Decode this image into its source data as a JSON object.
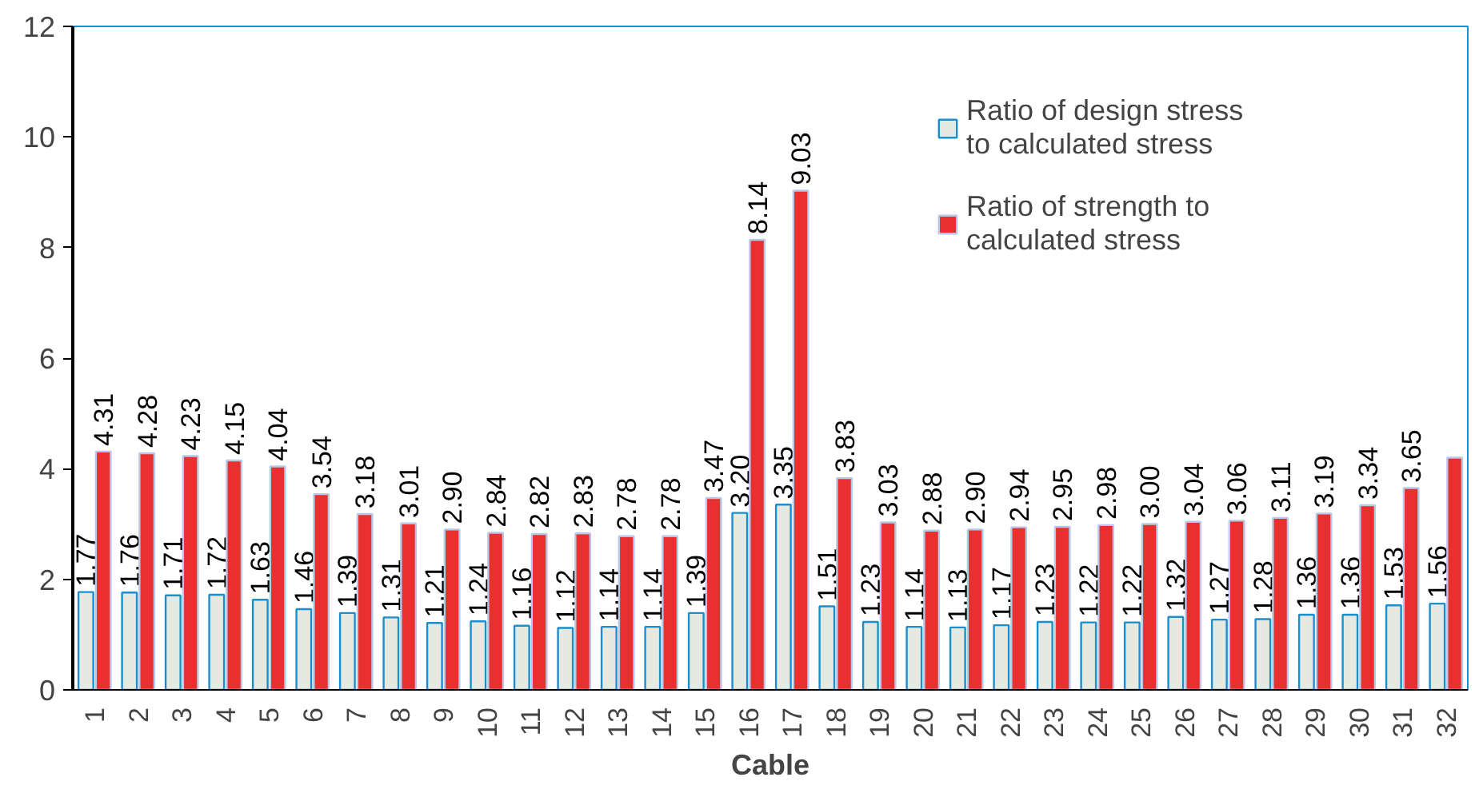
{
  "chart_data": {
    "type": "bar",
    "xlabel": "Cable",
    "categories": [
      "1",
      "2",
      "3",
      "4",
      "5",
      "6",
      "7",
      "8",
      "9",
      "10",
      "11",
      "12",
      "13",
      "14",
      "15",
      "16",
      "17",
      "18",
      "19",
      "20",
      "21",
      "22",
      "23",
      "24",
      "25",
      "26",
      "27",
      "28",
      "29",
      "30",
      "31",
      "32"
    ],
    "series": [
      {
        "name": "Ratio of design stress\nto calculated stress",
        "color": "#e6e9df",
        "values": [
          1.77,
          1.76,
          1.71,
          1.72,
          1.63,
          1.46,
          1.39,
          1.31,
          1.21,
          1.24,
          1.16,
          1.12,
          1.14,
          1.14,
          1.39,
          3.2,
          3.35,
          1.51,
          1.23,
          1.14,
          1.13,
          1.17,
          1.23,
          1.22,
          1.22,
          1.32,
          1.27,
          1.28,
          1.36,
          1.36,
          1.53,
          1.56
        ],
        "value_labels": [
          "1.77",
          "1.76",
          "1.71",
          "1.72",
          "1.63",
          "1.46",
          "1.39",
          "1.31",
          "1.21",
          "1.24",
          "1.16",
          "1.12",
          "1.14",
          "1.14",
          "1.39",
          "3.20",
          "3.35",
          "1.51",
          "1.23",
          "1.14",
          "1.13",
          "1.17",
          "1.23",
          "1.22",
          "1.22",
          "1.32",
          "1.27",
          "1.28",
          "1.36",
          "1.36",
          "1.53",
          "1.56"
        ]
      },
      {
        "name": "Ratio of strength to\ncalculated stress",
        "color": "#e8302f",
        "values": [
          4.31,
          4.28,
          4.23,
          4.15,
          4.04,
          3.54,
          3.18,
          3.01,
          2.9,
          2.84,
          2.82,
          2.83,
          2.78,
          2.78,
          3.47,
          8.14,
          9.03,
          3.83,
          3.03,
          2.88,
          2.9,
          2.94,
          2.95,
          2.98,
          3.0,
          3.04,
          3.06,
          3.11,
          3.19,
          3.34,
          3.65,
          4.2
        ],
        "value_labels": [
          "4.31",
          "4.28",
          "4.23",
          "4.15",
          "4.04",
          "3.54",
          "3.18",
          "3.01",
          "2.90",
          "2.84",
          "2.82",
          "2.83",
          "2.78",
          "2.78",
          "3.47",
          "8.14",
          "9.03",
          "3.83",
          "3.03",
          "2.88",
          "2.90",
          "2.94",
          "2.95",
          "2.98",
          "3.00",
          "3.04",
          "3.06",
          "3.11",
          "3.19",
          "3.34",
          "3.65",
          null
        ]
      }
    ],
    "ylim": [
      0,
      12
    ],
    "yticks": [
      0,
      2,
      4,
      6,
      8,
      10,
      12
    ],
    "legend": "top right"
  }
}
